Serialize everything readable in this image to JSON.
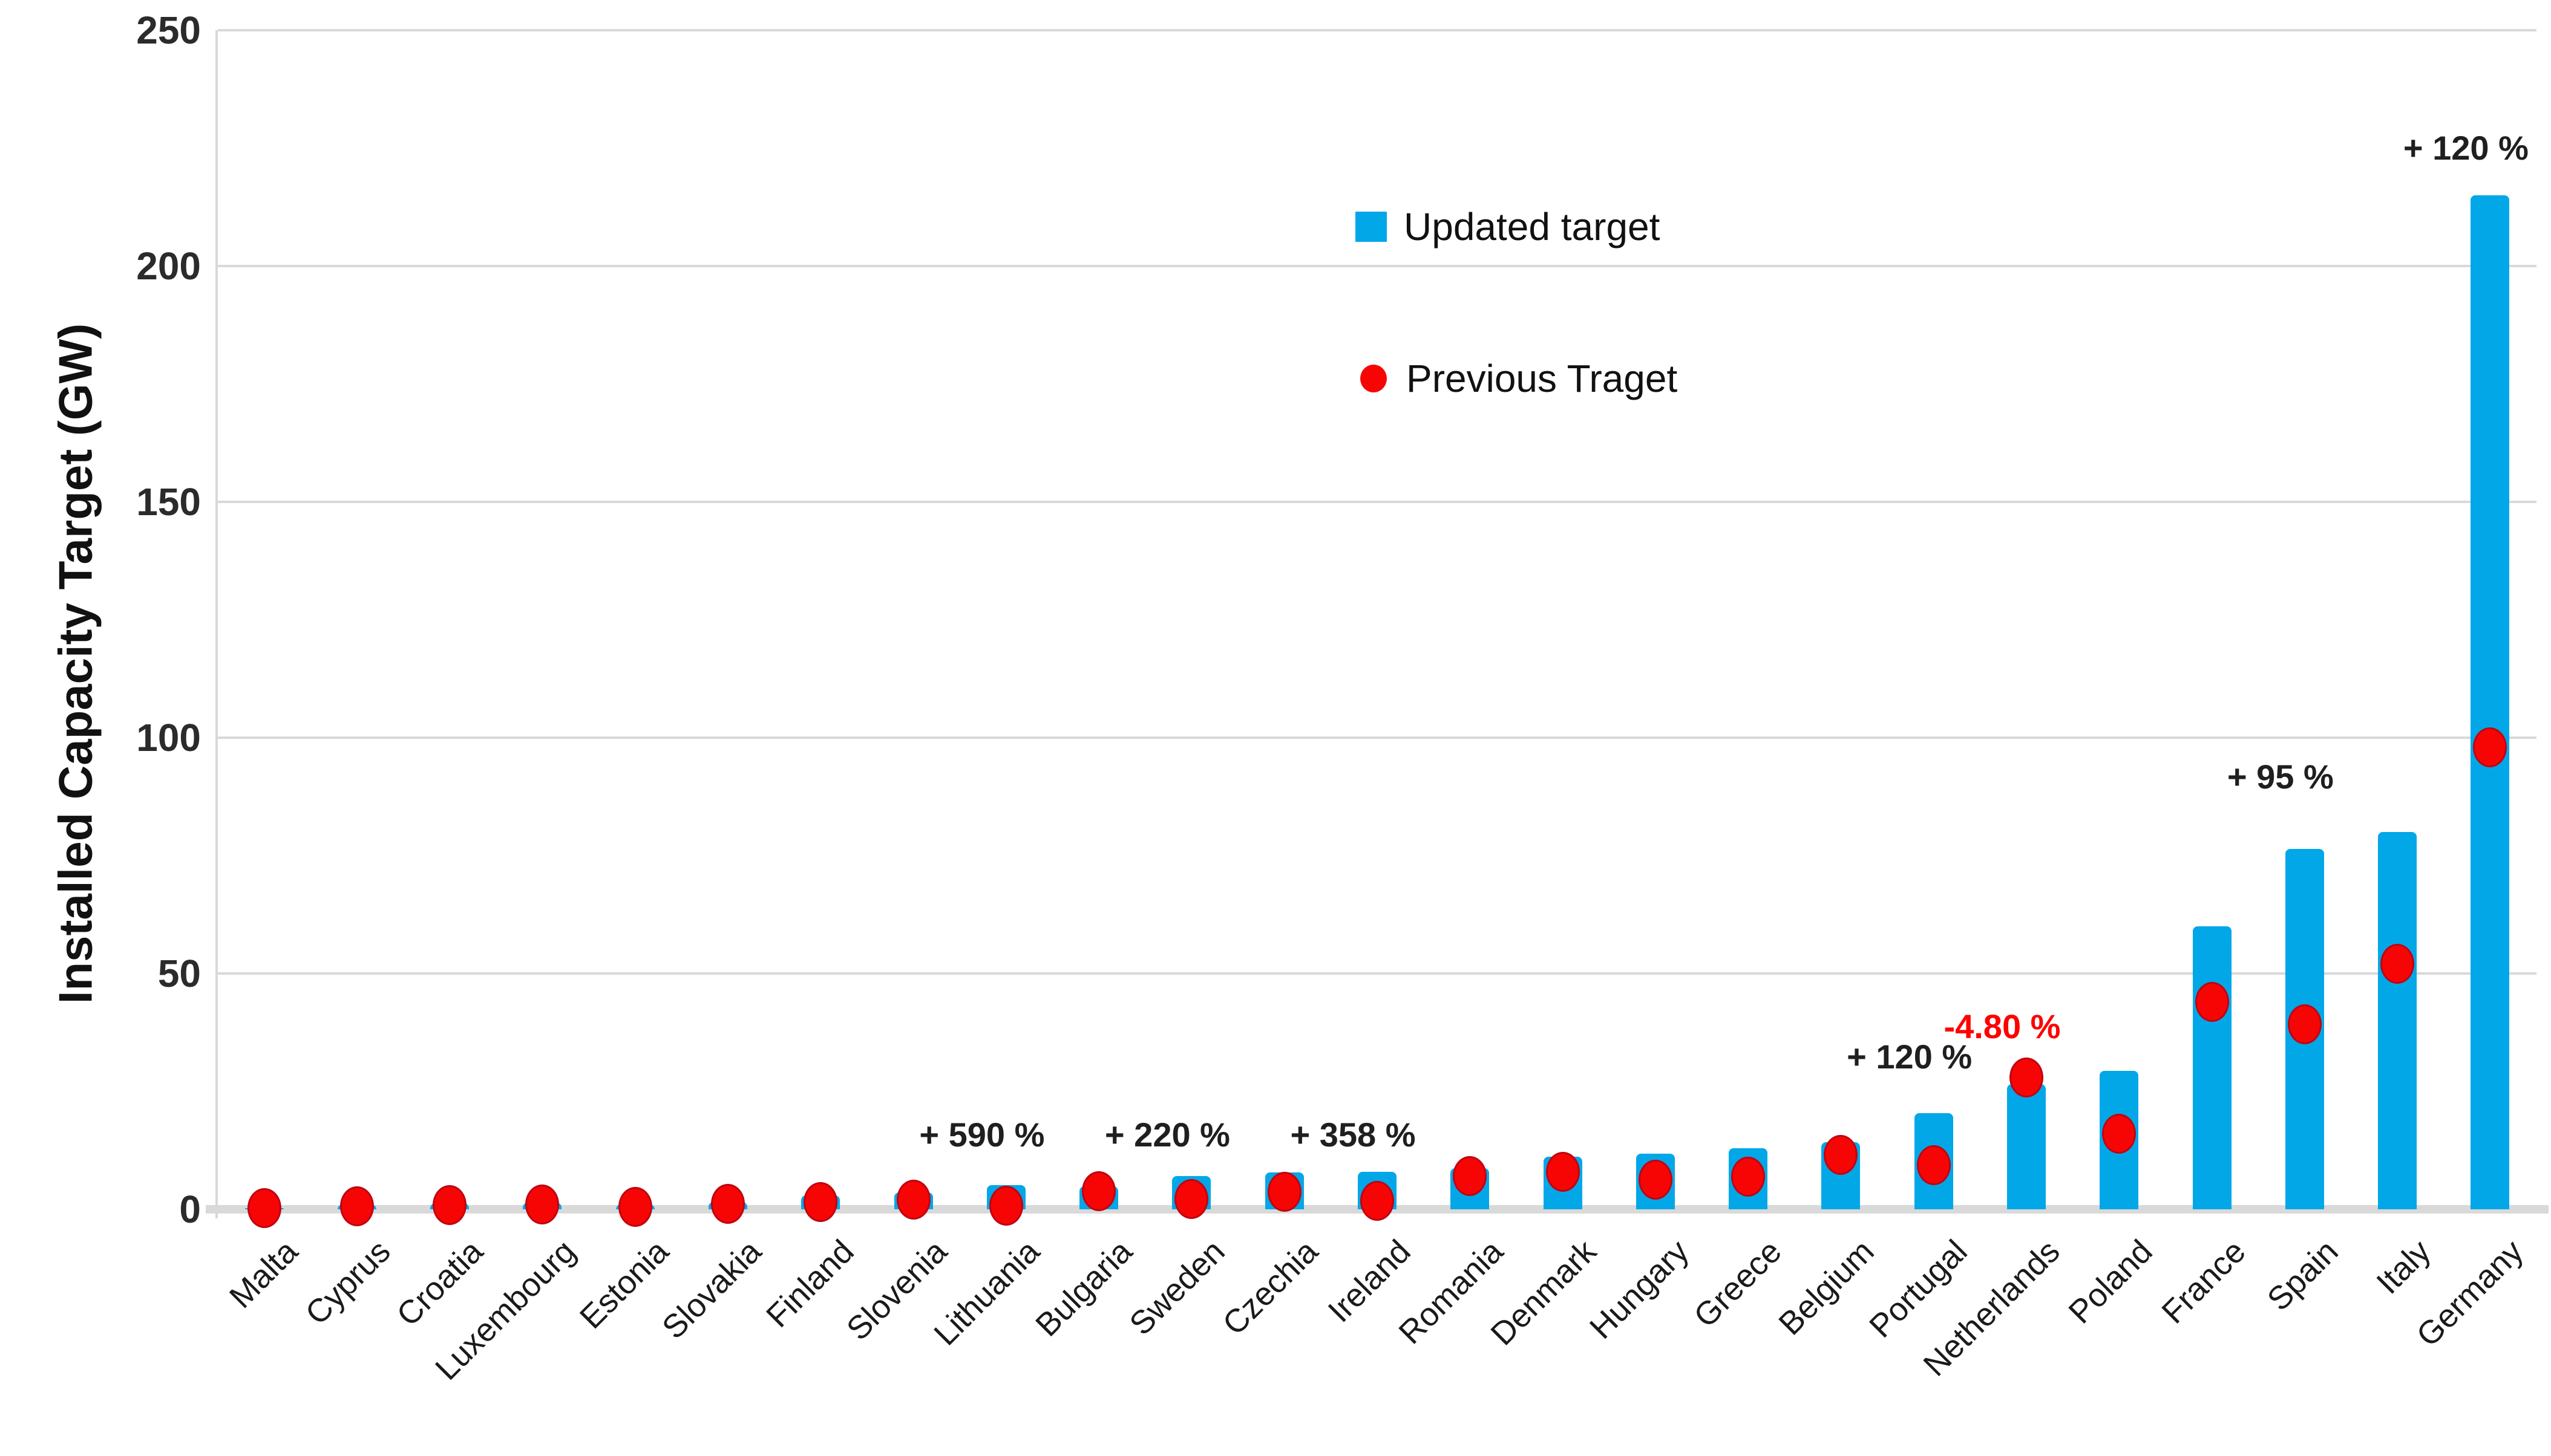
{
  "chart_data": {
    "type": "bar",
    "title": "",
    "xlabel": "",
    "ylabel": "Installed Capacity Target (GW)",
    "ylim": [
      0,
      250
    ],
    "yticks": [
      0,
      50,
      100,
      150,
      200,
      250
    ],
    "grid": true,
    "gridline_color": "#d9d9d9",
    "categories": [
      "Malta",
      "Cyprus",
      "Croatia",
      "Luxembourg",
      "Estonia",
      "Slovakia",
      "Finland",
      "Slovenia",
      "Lithuania",
      "Bulgaria",
      "Sweden",
      "Czechia",
      "Ireland",
      "Romania",
      "Denmark",
      "Hungary",
      "Greece",
      "Belgium",
      "Portugal",
      "Netherlands",
      "Poland",
      "France",
      "Spain",
      "Italy",
      "Germany"
    ],
    "series": [
      {
        "name": "Updated target",
        "render": "bar",
        "color": "#02a7e8",
        "values": [
          0.3,
          1.0,
          1.3,
          1.4,
          1.0,
          1.6,
          2.9,
          3.6,
          5.1,
          4.9,
          7.1,
          7.8,
          8.0,
          8.7,
          11.2,
          11.8,
          12.9,
          14.2,
          20.4,
          26.6,
          29.3,
          60,
          76.4,
          80,
          215
        ]
      },
      {
        "name": "Previous Traget",
        "render": "dot",
        "color": "#f70505",
        "values": [
          0.2,
          0.6,
          0.9,
          1.0,
          0.5,
          1.1,
          1.5,
          2.0,
          0.74,
          3.8,
          2.2,
          3.7,
          1.75,
          7.0,
          8.0,
          6.3,
          6.9,
          11.6,
          9.3,
          27.9,
          16.0,
          44,
          39.2,
          52,
          98
        ]
      }
    ],
    "annotations": [
      {
        "category": "Lithuania",
        "text": "+ 590 %",
        "color": "#1f1f1f",
        "y_gw": 15.8
      },
      {
        "category": "Sweden",
        "text": "+ 220 %",
        "color": "#1f1f1f",
        "y_gw": 15.8
      },
      {
        "category": "Ireland",
        "text": "+ 358 %",
        "color": "#1f1f1f",
        "y_gw": 15.8
      },
      {
        "category": "Portugal",
        "text": "+ 120 %",
        "color": "#1f1f1f",
        "y_gw": 32.3
      },
      {
        "category": "Netherlands",
        "text": "-4.80 %",
        "color": "#ff0000",
        "y_gw": 38.7
      },
      {
        "category": "Spain",
        "text": "+ 95 %",
        "color": "#1f1f1f",
        "y_gw": 91.7
      },
      {
        "category": "Germany",
        "text": "+ 120 %",
        "color": "#1f1f1f",
        "y_gw": 225
      }
    ],
    "legend": {
      "position": "upper-center",
      "items": [
        {
          "label": "Updated target",
          "marker": "square",
          "color": "#02a7e8"
        },
        {
          "label": "Previous Traget",
          "marker": "dot",
          "color": "#f70505"
        }
      ]
    }
  }
}
